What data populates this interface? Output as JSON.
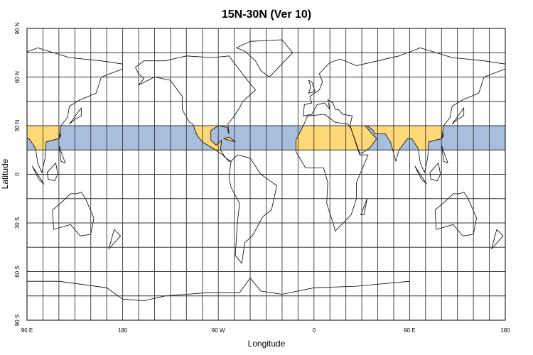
{
  "chart_data": {
    "type": "map",
    "title": "15N-30N (Ver 10)",
    "xlabel": "Longitude",
    "ylabel": "Latitude",
    "x_range_deg": [
      90,
      540
    ],
    "y_range_deg": [
      -90,
      90
    ],
    "grid_step_deg": 15,
    "x_tick_labels": [
      {
        "lon": 90,
        "label": "90 E"
      },
      {
        "lon": 180,
        "label": "180"
      },
      {
        "lon": 270,
        "label": "90 W"
      },
      {
        "lon": 360,
        "label": "0"
      },
      {
        "lon": 450,
        "label": "90 E"
      },
      {
        "lon": 540,
        "label": "180"
      }
    ],
    "y_tick_labels": [
      {
        "lat": 90,
        "label": "90 N"
      },
      {
        "lat": 60,
        "label": "60 N"
      },
      {
        "lat": 30,
        "label": "30 N"
      },
      {
        "lat": 0,
        "label": "0"
      },
      {
        "lat": -30,
        "label": "30 S"
      },
      {
        "lat": -60,
        "label": "60 S"
      },
      {
        "lat": -90,
        "label": "90 S"
      }
    ],
    "highlight_band": {
      "lat_min": 15,
      "lat_max": 30,
      "ocean_color": "#a7bedd",
      "land_color": "#ffd878"
    },
    "coastlines": [
      {
        "name": "Africa",
        "pts": [
          [
            -17,
            21
          ],
          [
            -10,
            30
          ],
          [
            -6,
            36
          ],
          [
            10,
            37
          ],
          [
            20,
            32
          ],
          [
            32,
            31
          ],
          [
            35,
            28
          ],
          [
            43,
            12
          ],
          [
            51,
            12
          ],
          [
            40,
            -5
          ],
          [
            40,
            -15
          ],
          [
            35,
            -25
          ],
          [
            20,
            -35
          ],
          [
            18,
            -30
          ],
          [
            12,
            -18
          ],
          [
            13,
            -5
          ],
          [
            9,
            4
          ],
          [
            -8,
            4
          ],
          [
            -17,
            14
          ]
        ]
      },
      {
        "name": "Eurasia",
        "pts": [
          [
            -10,
            36
          ],
          [
            -9,
            43
          ],
          [
            -2,
            44
          ],
          [
            -4,
            48
          ],
          [
            5,
            52
          ],
          [
            8,
            57
          ],
          [
            5,
            62
          ],
          [
            15,
            69
          ],
          [
            25,
            71
          ],
          [
            40,
            67
          ],
          [
            60,
            70
          ],
          [
            80,
            73
          ],
          [
            100,
            78
          ],
          [
            130,
            72
          ],
          [
            160,
            70
          ],
          [
            180,
            68
          ],
          [
            180,
            65
          ],
          [
            160,
            60
          ],
          [
            155,
            50
          ],
          [
            140,
            46
          ],
          [
            130,
            42
          ],
          [
            128,
            35
          ],
          [
            122,
            30
          ],
          [
            120,
            22
          ],
          [
            108,
            20
          ],
          [
            107,
            10
          ],
          [
            104,
            1
          ],
          [
            100,
            7
          ],
          [
            98,
            16
          ],
          [
            92,
            22
          ],
          [
            88,
            22
          ],
          [
            80,
            15
          ],
          [
            77,
            8
          ],
          [
            72,
            20
          ],
          [
            67,
            25
          ],
          [
            57,
            25
          ],
          [
            56,
            27
          ],
          [
            50,
            30
          ],
          [
            48,
            30
          ],
          [
            56,
            24
          ],
          [
            59,
            22
          ],
          [
            52,
            16
          ],
          [
            45,
            13
          ],
          [
            43,
            13
          ],
          [
            35,
            28
          ],
          [
            34,
            30
          ],
          [
            36,
            36
          ],
          [
            27,
            37
          ],
          [
            23,
            40
          ],
          [
            20,
            40
          ],
          [
            18,
            44
          ],
          [
            13,
            46
          ],
          [
            15,
            40
          ],
          [
            10,
            44
          ],
          [
            3,
            43
          ],
          [
            -2,
            37
          ]
        ]
      },
      {
        "name": "North America",
        "pts": [
          [
            -168,
            66
          ],
          [
            -160,
            70
          ],
          [
            -140,
            70
          ],
          [
            -120,
            73
          ],
          [
            -95,
            72
          ],
          [
            -80,
            73
          ],
          [
            -65,
            60
          ],
          [
            -55,
            52
          ],
          [
            -67,
            45
          ],
          [
            -70,
            41
          ],
          [
            -76,
            35
          ],
          [
            -81,
            31
          ],
          [
            -80,
            25
          ],
          [
            -82,
            29
          ],
          [
            -90,
            30
          ],
          [
            -97,
            27
          ],
          [
            -97,
            21
          ],
          [
            -92,
            18
          ],
          [
            -87,
            21
          ],
          [
            -88,
            15
          ],
          [
            -83,
            10
          ],
          [
            -78,
            8
          ],
          [
            -80,
            8
          ],
          [
            -86,
            12
          ],
          [
            -95,
            16
          ],
          [
            -105,
            20
          ],
          [
            -110,
            24
          ],
          [
            -114,
            31
          ],
          [
            -117,
            32
          ],
          [
            -124,
            40
          ],
          [
            -124,
            48
          ],
          [
            -135,
            58
          ],
          [
            -150,
            60
          ],
          [
            -165,
            55
          ],
          [
            -160,
            59
          ],
          [
            -165,
            62
          ]
        ]
      },
      {
        "name": "Greenland",
        "pts": [
          [
            -73,
            78
          ],
          [
            -60,
            82
          ],
          [
            -30,
            83
          ],
          [
            -20,
            75
          ],
          [
            -42,
            60
          ],
          [
            -50,
            64
          ],
          [
            -55,
            70
          ],
          [
            -65,
            76
          ]
        ]
      },
      {
        "name": "South America",
        "pts": [
          [
            -78,
            8
          ],
          [
            -72,
            12
          ],
          [
            -60,
            10
          ],
          [
            -50,
            0
          ],
          [
            -35,
            -7
          ],
          [
            -40,
            -22
          ],
          [
            -48,
            -26
          ],
          [
            -58,
            -38
          ],
          [
            -65,
            -42
          ],
          [
            -68,
            -55
          ],
          [
            -74,
            -50
          ],
          [
            -72,
            -30
          ],
          [
            -70,
            -18
          ],
          [
            -78,
            -8
          ],
          [
            -80,
            -2
          ]
        ]
      },
      {
        "name": "Australia",
        "pts": [
          [
            114,
            -22
          ],
          [
            123,
            -17
          ],
          [
            131,
            -12
          ],
          [
            137,
            -12
          ],
          [
            141,
            -11
          ],
          [
            145,
            -15
          ],
          [
            153,
            -27
          ],
          [
            150,
            -37
          ],
          [
            140,
            -38
          ],
          [
            131,
            -31
          ],
          [
            115,
            -34
          ]
        ]
      },
      {
        "name": "Borneo",
        "pts": [
          [
            109,
            1
          ],
          [
            117,
            7
          ],
          [
            119,
            0
          ],
          [
            116,
            -4
          ],
          [
            110,
            -3
          ]
        ]
      },
      {
        "name": "Sumatra",
        "pts": [
          [
            95,
            5
          ],
          [
            106,
            -6
          ],
          [
            101,
            -3
          ]
        ]
      },
      {
        "name": "Japan",
        "pts": [
          [
            130,
            31
          ],
          [
            141,
            41
          ],
          [
            141,
            36
          ],
          [
            135,
            34
          ]
        ]
      },
      {
        "name": "Britain",
        "pts": [
          [
            -5,
            50
          ],
          [
            1,
            51
          ],
          [
            -2,
            57
          ],
          [
            -5,
            58
          ],
          [
            -3,
            54
          ]
        ]
      },
      {
        "name": "Madagascar",
        "pts": [
          [
            44,
            -25
          ],
          [
            50,
            -15
          ],
          [
            47,
            -25
          ]
        ]
      },
      {
        "name": "New Zealand",
        "pts": [
          [
            172,
            -34
          ],
          [
            178,
            -38
          ],
          [
            167,
            -46
          ]
        ]
      },
      {
        "name": "Philippines",
        "pts": [
          [
            120,
            18
          ],
          [
            122,
            14
          ],
          [
            126,
            7
          ],
          [
            122,
            8
          ]
        ]
      },
      {
        "name": "Cuba",
        "pts": [
          [
            -85,
            22
          ],
          [
            -74,
            20
          ],
          [
            -80,
            23
          ]
        ]
      },
      {
        "name": "Taiwan",
        "pts": [
          [
            120,
            22
          ],
          [
            122,
            25
          ],
          [
            121,
            23
          ]
        ]
      }
    ],
    "antarctica_coast": [
      [
        90,
        -66
      ],
      [
        120,
        -66
      ],
      [
        165,
        -70
      ],
      [
        180,
        -77
      ],
      [
        200,
        -78
      ],
      [
        220,
        -75
      ],
      [
        260,
        -73
      ],
      [
        290,
        -73
      ],
      [
        300,
        -64
      ],
      [
        310,
        -72
      ],
      [
        330,
        -74
      ],
      [
        360,
        -70
      ],
      [
        400,
        -69
      ],
      [
        450,
        -66
      ]
    ]
  }
}
